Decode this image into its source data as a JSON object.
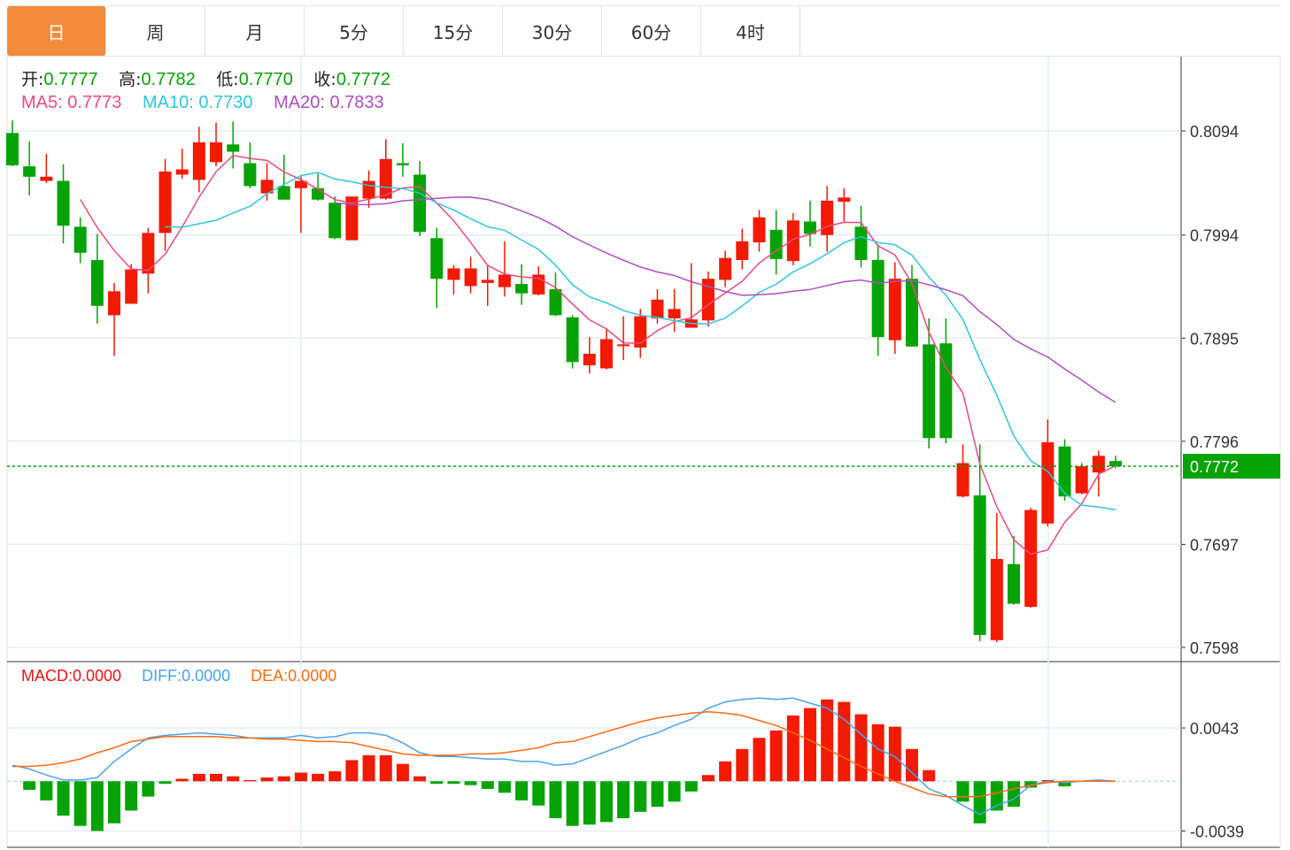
{
  "tabs": [
    {
      "label": "日",
      "active": true
    },
    {
      "label": "周"
    },
    {
      "label": "月"
    },
    {
      "label": "5分"
    },
    {
      "label": "15分"
    },
    {
      "label": "30分"
    },
    {
      "label": "60分"
    },
    {
      "label": "4时"
    }
  ],
  "ohlc_legend": {
    "open_label": "开:",
    "open": "0.7777",
    "high_label": "高:",
    "high": "0.7782",
    "low_label": "低:",
    "low": "0.7770",
    "close_label": "收:",
    "close": "0.7772"
  },
  "ma_legend": {
    "ma5_label": "MA5:",
    "ma5": "0.7773",
    "ma10_label": "MA10:",
    "ma10": "0.7730",
    "ma20_label": "MA20:",
    "ma20": "0.7833"
  },
  "macd_legend": {
    "macd_label": "MACD:",
    "macd": "0.0000",
    "diff_label": "DIFF:",
    "diff": "0.0000",
    "dea_label": "DEA:",
    "dea": "0.0000"
  },
  "colors": {
    "up": "#f21a00",
    "down": "#05a305",
    "ma5": "#ec4a7f",
    "ma10": "#2ec7dc",
    "ma20": "#ad4fc0",
    "diff": "#4aa3f0",
    "dea": "#ff6a10",
    "macd_label": "#ee1111",
    "accent_tab": "#f28b3c",
    "last_price": "#05a305"
  },
  "chart_data": [
    {
      "type": "candlestick",
      "convention": "red = up, green = down",
      "ylim": [
        0.7598,
        0.8094
      ],
      "y_ticks": [
        "0.8094",
        "0.7994",
        "0.7895",
        "0.7796",
        "0.7697",
        "0.7598"
      ],
      "last_price": "0.7772",
      "moving_averages": [
        5,
        10,
        20
      ],
      "grid": true,
      "candles": [
        [
          0.8092,
          0.8104,
          0.806,
          0.8061
        ],
        [
          0.806,
          0.8084,
          0.8032,
          0.805
        ],
        [
          0.8046,
          0.8072,
          0.8044,
          0.805
        ],
        [
          0.8046,
          0.8062,
          0.7986,
          0.8003
        ],
        [
          0.8002,
          0.8011,
          0.7967,
          0.7977
        ],
        [
          0.797,
          0.7995,
          0.7909,
          0.7926
        ],
        [
          0.7917,
          0.7948,
          0.7878,
          0.794
        ],
        [
          0.7928,
          0.7966,
          0.7928,
          0.7961
        ],
        [
          0.7957,
          0.8001,
          0.7938,
          0.7996
        ],
        [
          0.7996,
          0.8067,
          0.7979,
          0.8055
        ],
        [
          0.8052,
          0.8077,
          0.8048,
          0.8057
        ],
        [
          0.8047,
          0.8098,
          0.8035,
          0.8083
        ],
        [
          0.8064,
          0.8102,
          0.806,
          0.8083
        ],
        [
          0.8081,
          0.8103,
          0.8058,
          0.8074
        ],
        [
          0.8063,
          0.8083,
          0.8039,
          0.8041
        ],
        [
          0.8034,
          0.8063,
          0.8027,
          0.8047
        ],
        [
          0.8041,
          0.8071,
          0.8028,
          0.8028
        ],
        [
          0.8039,
          0.805,
          0.7996,
          0.8046
        ],
        [
          0.8039,
          0.8053,
          0.8027,
          0.8028
        ],
        [
          0.8025,
          0.8031,
          0.799,
          0.7991
        ],
        [
          0.7989,
          0.8031,
          0.7989,
          0.8031
        ],
        [
          0.8029,
          0.8056,
          0.802,
          0.8046
        ],
        [
          0.8029,
          0.8086,
          0.8028,
          0.8067
        ],
        [
          0.8063,
          0.8082,
          0.805,
          0.8061
        ],
        [
          0.8052,
          0.8065,
          0.7993,
          0.7997
        ],
        [
          0.7991,
          0.8001,
          0.7924,
          0.7952
        ],
        [
          0.7951,
          0.7965,
          0.7937,
          0.7962
        ],
        [
          0.7945,
          0.7973,
          0.7938,
          0.7962
        ],
        [
          0.7948,
          0.7965,
          0.7926,
          0.7951
        ],
        [
          0.7944,
          0.7988,
          0.7935,
          0.7956
        ],
        [
          0.7947,
          0.7966,
          0.7927,
          0.7938
        ],
        [
          0.7937,
          0.7964,
          0.7936,
          0.7956
        ],
        [
          0.7942,
          0.7958,
          0.7916,
          0.7917
        ],
        [
          0.7915,
          0.7917,
          0.7866,
          0.7872
        ],
        [
          0.7869,
          0.7896,
          0.7861,
          0.788
        ],
        [
          0.7866,
          0.7904,
          0.7865,
          0.7894
        ],
        [
          0.7888,
          0.7916,
          0.7874,
          0.7889
        ],
        [
          0.7886,
          0.7923,
          0.7876,
          0.7916
        ],
        [
          0.7914,
          0.7942,
          0.7909,
          0.7932
        ],
        [
          0.7914,
          0.7942,
          0.7901,
          0.7923
        ],
        [
          0.7905,
          0.7967,
          0.7905,
          0.7913
        ],
        [
          0.7912,
          0.7959,
          0.7906,
          0.7952
        ],
        [
          0.7951,
          0.7979,
          0.7944,
          0.7972
        ],
        [
          0.797,
          0.8,
          0.7961,
          0.7988
        ],
        [
          0.7987,
          0.8018,
          0.7978,
          0.8011
        ],
        [
          0.7999,
          0.8018,
          0.7956,
          0.7971
        ],
        [
          0.7969,
          0.8015,
          0.7965,
          0.8008
        ],
        [
          0.8007,
          0.8027,
          0.7983,
          0.7995
        ],
        [
          0.7994,
          0.8041,
          0.7978,
          0.8027
        ],
        [
          0.8026,
          0.8039,
          0.8007,
          0.803
        ],
        [
          0.8002,
          0.8022,
          0.7963,
          0.797
        ],
        [
          0.797,
          0.7985,
          0.7878,
          0.7896
        ],
        [
          0.7893,
          0.7968,
          0.788,
          0.7952
        ],
        [
          0.7952,
          0.7965,
          0.7887,
          0.7887
        ],
        [
          0.7889,
          0.7914,
          0.7789,
          0.7799
        ],
        [
          0.789,
          0.7914,
          0.7794,
          0.7799
        ],
        [
          0.7743,
          0.7793,
          0.7742,
          0.7775
        ],
        [
          0.7744,
          0.7793,
          0.7604,
          0.761
        ],
        [
          0.7605,
          0.7727,
          0.7603,
          0.7683
        ],
        [
          0.7678,
          0.7705,
          0.7639,
          0.764
        ],
        [
          0.7637,
          0.7732,
          0.7636,
          0.773
        ],
        [
          0.7717,
          0.7817,
          0.7714,
          0.7795
        ],
        [
          0.7791,
          0.7798,
          0.7739,
          0.7743
        ],
        [
          0.7746,
          0.7775,
          0.7745,
          0.7772
        ],
        [
          0.7766,
          0.7787,
          0.7743,
          0.7782
        ],
        [
          0.7777,
          0.7782,
          0.777,
          0.7772
        ]
      ]
    },
    {
      "type": "macd",
      "ylim": [
        -0.0039,
        0.0043
      ],
      "y_ticks": [
        "0.0043",
        "-0.0039"
      ],
      "histogram": [
        0,
        -0.00067,
        -0.0015,
        -0.0027,
        -0.0035,
        -0.0039,
        -0.0033,
        -0.0023,
        -0.0012,
        -0.0002,
        0.0002,
        0.0006,
        0.0006,
        0.0004,
        0.0001,
        0.0003,
        0.0004,
        0.0007,
        0.0006,
        0.0008,
        0.0017,
        0.0021,
        0.0021,
        0.0014,
        0.0004,
        -0.0002,
        -0.0002,
        -0.0003,
        -0.0006,
        -0.0009,
        -0.0015,
        -0.0019,
        -0.0029,
        -0.0035,
        -0.0034,
        -0.0032,
        -0.0029,
        -0.0024,
        -0.002,
        -0.0016,
        -0.0008,
        0.0005,
        0.0016,
        0.0026,
        0.0035,
        0.0041,
        0.0053,
        0.0059,
        0.0066,
        0.0064,
        0.0054,
        0.0046,
        0.0044,
        0.0026,
        0.0009,
        0,
        -0.0016,
        -0.0033,
        -0.0023,
        -0.002,
        -0.0005,
        0.0001,
        -0.0004,
        5e-05,
        0.0001,
        0
      ],
      "diff": [
        0.0013,
        0.001,
        0.0005,
        0.0001,
        0.0001,
        0.0003,
        0.0016,
        0.0026,
        0.0035,
        0.0037,
        0.0038,
        0.0039,
        0.0038,
        0.0037,
        0.0035,
        0.0035,
        0.0035,
        0.0037,
        0.0035,
        0.0036,
        0.0039,
        0.0039,
        0.0037,
        0.0031,
        0.0023,
        0.002,
        0.002,
        0.0019,
        0.0018,
        0.0018,
        0.0016,
        0.0016,
        0.0013,
        0.0014,
        0.0019,
        0.0024,
        0.0029,
        0.0035,
        0.0039,
        0.0045,
        0.005,
        0.0059,
        0.0064,
        0.0066,
        0.0067,
        0.0066,
        0.0067,
        0.0063,
        0.0059,
        0.005,
        0.0038,
        0.0026,
        0.002,
        0.0007,
        -0.0006,
        -0.0011,
        -0.0019,
        -0.0026,
        -0.0019,
        -0.0014,
        -0.0003,
        0,
        -0.0001,
        0,
        0.0001,
        0
      ],
      "dea": [
        0.0012,
        0.0012,
        0.0013,
        0.0015,
        0.0018,
        0.0023,
        0.0027,
        0.0032,
        0.0034,
        0.0036,
        0.0036,
        0.0036,
        0.0036,
        0.0035,
        0.0035,
        0.0034,
        0.0034,
        0.0033,
        0.0032,
        0.0032,
        0.0031,
        0.0028,
        0.0025,
        0.0022,
        0.0021,
        0.0021,
        0.0021,
        0.0022,
        0.0022,
        0.0023,
        0.0025,
        0.0027,
        0.0031,
        0.0032,
        0.0036,
        0.004,
        0.0044,
        0.0048,
        0.0051,
        0.0053,
        0.0055,
        0.0056,
        0.0055,
        0.0053,
        0.0049,
        0.0045,
        0.0039,
        0.0033,
        0.0026,
        0.0019,
        0.0012,
        0.0006,
        0,
        -0.0005,
        -0.001,
        -0.0012,
        -0.0012,
        -0.0012,
        -0.0009,
        -0.0006,
        -0.0003,
        -0.0001,
        0,
        0,
        0,
        0
      ]
    }
  ]
}
